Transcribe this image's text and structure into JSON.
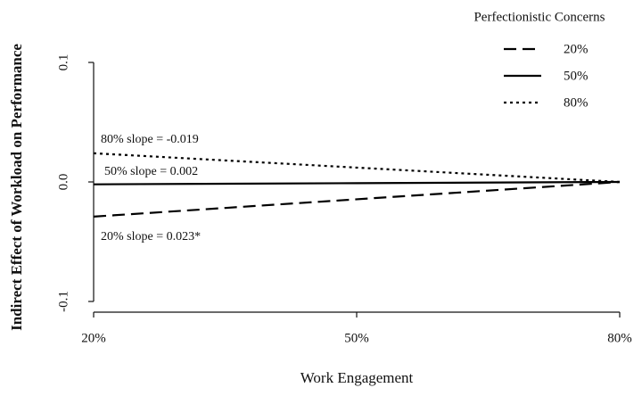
{
  "chart_data": {
    "type": "line",
    "x_label": "Work Engagement",
    "y_label": "Indirect Effect of Workload on Performance",
    "categories": [
      "20%",
      "50%",
      "80%"
    ],
    "series": [
      {
        "name": "20%",
        "color": "#000000",
        "dash": "dashed",
        "values": [
          -0.029,
          -0.0145,
          0
        ]
      },
      {
        "name": "50%",
        "color": "#000000",
        "dash": "solid",
        "values": [
          -0.002,
          -0.001,
          0
        ]
      },
      {
        "name": "80%",
        "color": "#000000",
        "dash": "dotted",
        "values": [
          0.024,
          0.012,
          0
        ]
      }
    ],
    "legend_title": "Perfectionistic Concerns",
    "legend": "top-right",
    "annotations": [
      "80% slope = -0.019",
      "50% slope = 0.002",
      "20% slope = 0.023*"
    ],
    "ylim": [
      -0.1,
      0.1
    ],
    "yticks": [
      -0.1,
      {
        "value": 0,
        "label": "0.0"
      },
      0.1
    ]
  }
}
